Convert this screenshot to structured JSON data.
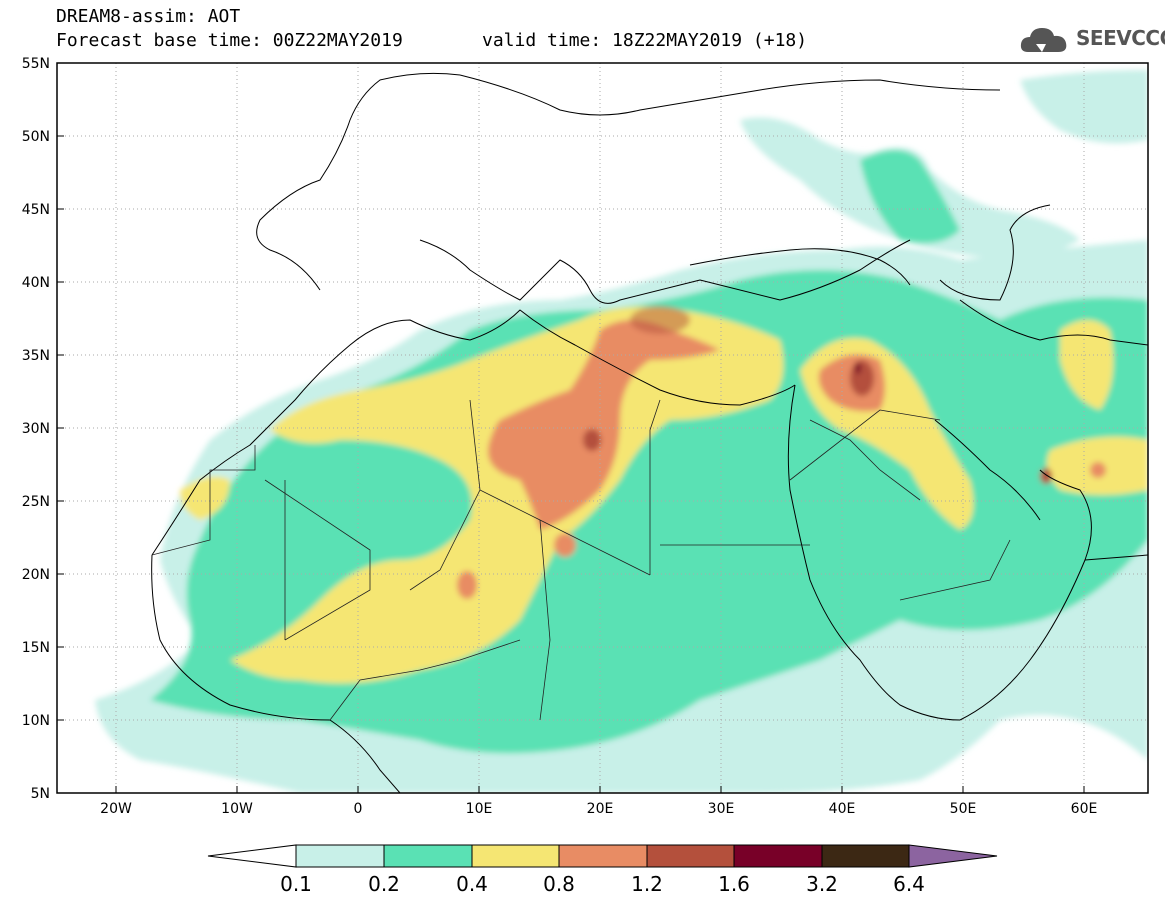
{
  "header": {
    "title": "DREAM8-assim: AOT",
    "base_time": "Forecast base time: 00Z22MAY2019",
    "valid_time": "valid time: 18Z22MAY2019 (+18)"
  },
  "logo": {
    "text": "SEEVCCC",
    "icon": "cloud-icon"
  },
  "map": {
    "lon_range": [
      -25,
      65
    ],
    "lat_range": [
      5,
      55
    ],
    "lat_ticks": [
      "55N",
      "50N",
      "45N",
      "40N",
      "35N",
      "30N",
      "25N",
      "20N",
      "15N",
      "10N",
      "5N"
    ],
    "lon_ticks": [
      "20W",
      "10W",
      "0",
      "10E",
      "20E",
      "30E",
      "40E",
      "50E",
      "60E"
    ],
    "grid": true
  },
  "colorbar": {
    "labels": [
      "0.1",
      "0.2",
      "0.4",
      "0.8",
      "1.2",
      "1.6",
      "3.2",
      "6.4"
    ],
    "colors": [
      "#ffffff",
      "#c8f0e8",
      "#5ae1b4",
      "#f5e673",
      "#e88c64",
      "#b4503c",
      "#780028",
      "#3c2814",
      "#8c64a0"
    ]
  }
}
